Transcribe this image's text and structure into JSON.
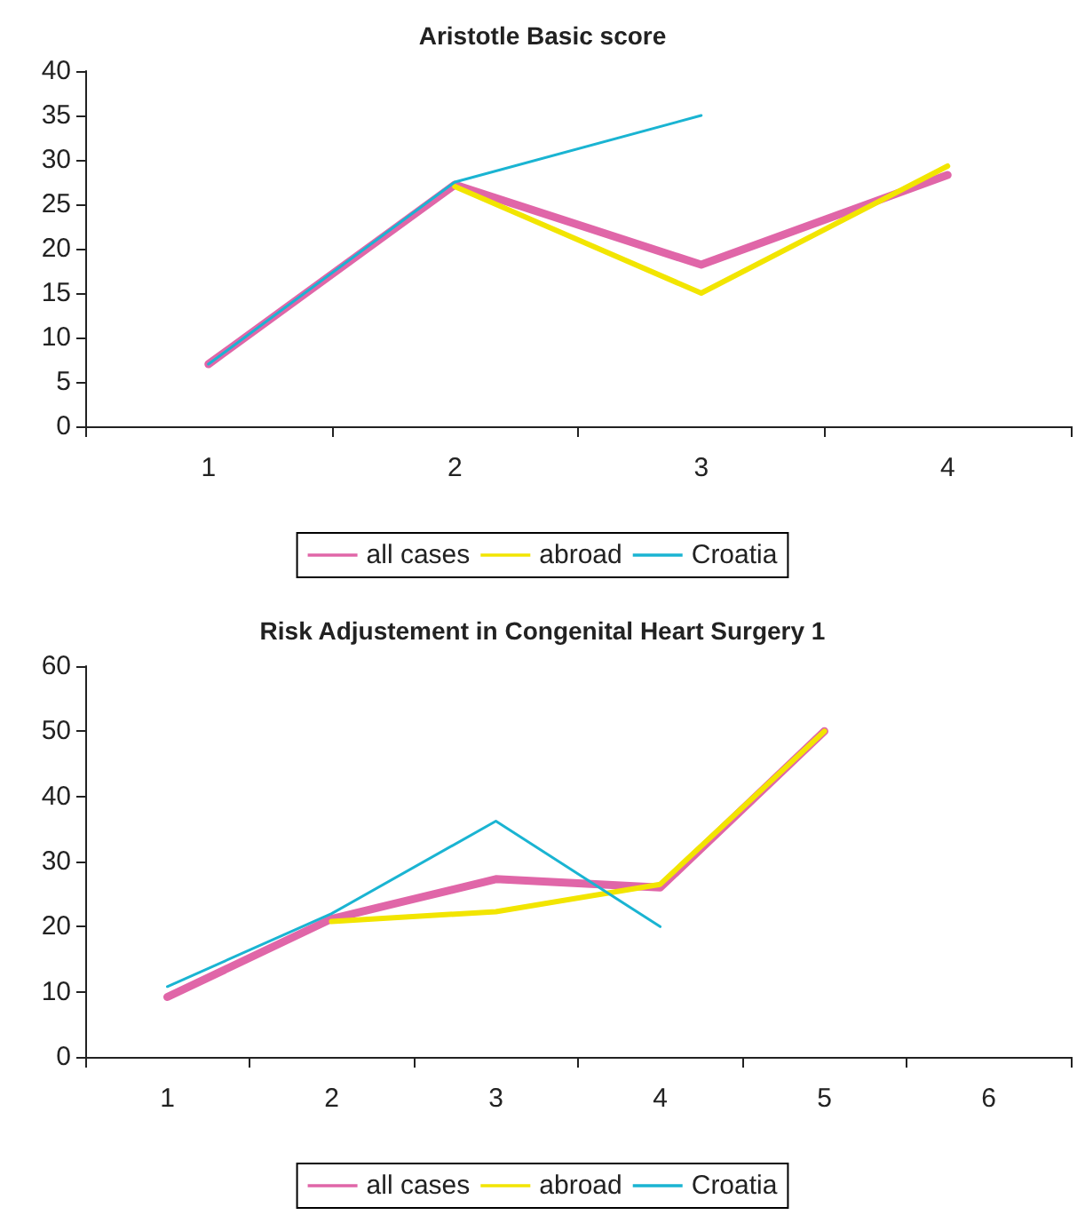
{
  "chart_data": [
    {
      "type": "line",
      "title": "Aristotle Basic score",
      "categories": [
        "1",
        "2",
        "3",
        "4"
      ],
      "ylim": [
        0,
        40
      ],
      "yticks": [
        0,
        5,
        10,
        15,
        20,
        25,
        30,
        35,
        40
      ],
      "legend": "bottom",
      "grid": false,
      "marker": "none",
      "line_style": "solid",
      "series": [
        {
          "name": "all cases",
          "color": "#e066a8",
          "values": [
            7,
            27.2,
            18.2,
            28.3
          ]
        },
        {
          "name": "abroad",
          "color": "#f2e500",
          "values": [
            null,
            27,
            15,
            29.3
          ]
        },
        {
          "name": "Croatia",
          "color": "#1ab4d2",
          "values": [
            7,
            27.5,
            35,
            null
          ]
        }
      ]
    },
    {
      "type": "line",
      "title": "Risk Adjustement in Congenital Heart Surgery 1",
      "categories": [
        "1",
        "2",
        "3",
        "4",
        "5",
        "6"
      ],
      "ylim": [
        0,
        60
      ],
      "yticks": [
        0,
        10,
        20,
        30,
        40,
        50,
        60
      ],
      "legend": "bottom",
      "grid": false,
      "marker": "none",
      "line_style": "solid",
      "series": [
        {
          "name": "all cases",
          "color": "#e066a8",
          "values": [
            9.2,
            21.2,
            27.3,
            26,
            50,
            null
          ]
        },
        {
          "name": "abroad",
          "color": "#f2e500",
          "values": [
            null,
            20.8,
            22.3,
            26.5,
            50,
            null
          ]
        },
        {
          "name": "Croatia",
          "color": "#1ab4d2",
          "values": [
            10.8,
            22,
            36.2,
            20,
            null,
            null
          ]
        }
      ]
    }
  ]
}
